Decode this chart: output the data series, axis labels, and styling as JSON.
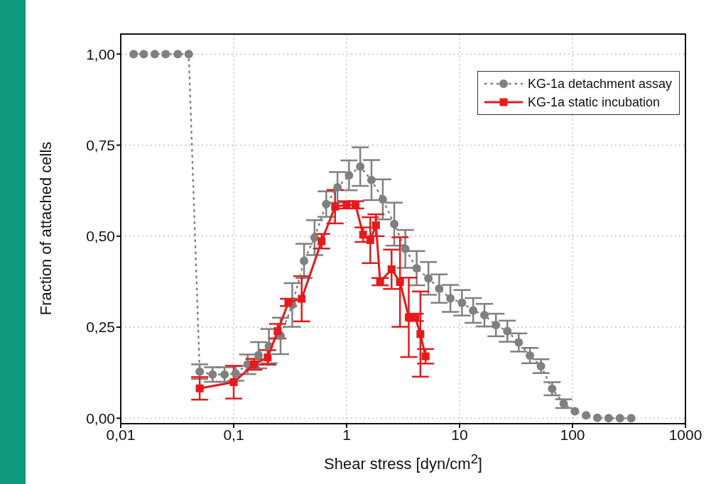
{
  "chart_data": {
    "type": "line",
    "xlabel": "Shear stress [dyn/cm$^{2}$]",
    "ylabel": "Fraction of attached cells",
    "log": "x",
    "xlim": [
      0.01,
      1000
    ],
    "xticks": [
      {
        "value": 0.01,
        "label": "0,01"
      },
      {
        "value": 0.1,
        "label": "0,1"
      },
      1,
      10,
      100,
      1000
    ],
    "ylim": [
      -0.015,
      1.055
    ],
    "yticks": [
      {
        "value": 0,
        "label": "0,00"
      },
      {
        "value": 0.25,
        "label": "0,25"
      },
      {
        "value": 0.5,
        "label": "0,50"
      },
      {
        "value": 0.75,
        "label": "0,75"
      },
      {
        "value": 1,
        "label": "1,00"
      }
    ],
    "grid": true,
    "legend": "top right",
    "series": [
      {
        "name": "KG-1a detachment assay",
        "color": "#808080",
        "marker": "circle",
        "line_style": "dotted",
        "x": [
          0.013,
          0.016,
          0.02,
          0.025,
          0.032,
          0.04,
          0.05,
          0.065,
          0.083,
          0.104,
          0.133,
          0.166,
          0.205,
          0.26,
          0.33,
          0.42,
          0.52,
          0.66,
          0.83,
          1.05,
          1.32,
          1.66,
          2.09,
          2.64,
          3.31,
          4.17,
          5.3,
          6.6,
          8.3,
          10.5,
          13.2,
          16.6,
          21,
          26.5,
          33.4,
          42,
          52.6,
          66,
          83.5,
          105,
          132,
          166,
          209,
          263,
          331
        ],
        "values": [
          1,
          1,
          1,
          1,
          1,
          1,
          0.128,
          0.12,
          0.12,
          0.123,
          0.148,
          0.173,
          0.198,
          0.226,
          0.311,
          0.432,
          0.496,
          0.588,
          0.634,
          0.667,
          0.691,
          0.654,
          0.601,
          0.533,
          0.465,
          0.412,
          0.384,
          0.356,
          0.329,
          0.317,
          0.296,
          0.283,
          0.256,
          0.239,
          0.208,
          0.172,
          0.143,
          0.081,
          0.04,
          0.019,
          0.008,
          0.001,
          0,
          0,
          0
        ],
        "errors": [
          null,
          null,
          null,
          null,
          null,
          null,
          0.02,
          0.02,
          0.02,
          0.02,
          0.027,
          0.036,
          0.047,
          0.05,
          0.06,
          0.047,
          0.048,
          0.035,
          0.042,
          0.041,
          0.053,
          0.055,
          0.055,
          0.059,
          0.052,
          0.047,
          0.045,
          0.039,
          0.037,
          0.035,
          0.034,
          0.031,
          0.031,
          0.029,
          0.025,
          0.021,
          0.019,
          0.018,
          0.012,
          null,
          null,
          null,
          null,
          null,
          null
        ]
      },
      {
        "name": "KG-1a static incubation",
        "color": "#e41a1c",
        "marker": "square",
        "line_style": "solid",
        "x": [
          0.05,
          0.1,
          0.151,
          0.2,
          0.245,
          0.305,
          0.4,
          0.6,
          0.79,
          1.0,
          1.2,
          1.4,
          1.62,
          1.82,
          1.98,
          2.5,
          2.97,
          3.55,
          4.05,
          4.5,
          5.0
        ],
        "values": [
          0.082,
          0.099,
          0.148,
          0.167,
          0.239,
          0.318,
          0.328,
          0.486,
          0.581,
          0.586,
          0.586,
          0.504,
          0.489,
          0.53,
          0.375,
          0.409,
          0.374,
          0.277,
          0.277,
          0.231,
          0.17
        ],
        "errors": [
          0.031,
          0.045,
          0.015,
          0.02,
          0.02,
          0.01,
          0.062,
          0.02,
          0.046,
          0.01,
          0.01,
          0.02,
          0.063,
          0.03,
          0.01,
          0.054,
          0.123,
          0.109,
          0.01,
          0.117,
          0.02
        ]
      }
    ]
  }
}
